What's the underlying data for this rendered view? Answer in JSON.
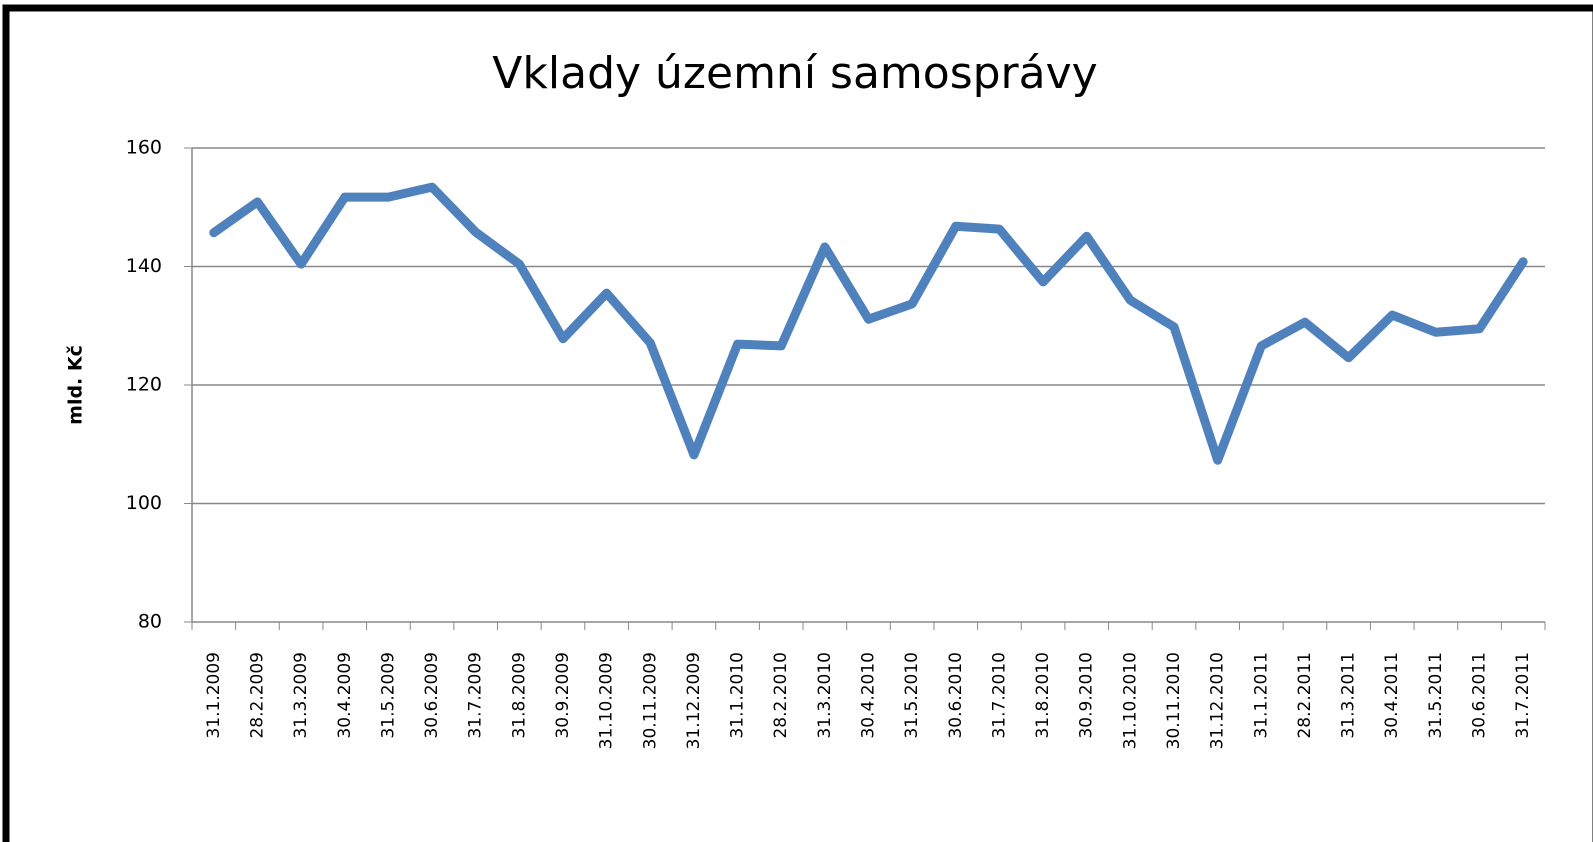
{
  "chart_data": {
    "type": "line",
    "title": "Vklady územní samosprávy",
    "y_label": "mld. Kč",
    "categories": [
      "31.1.2009",
      "28.2.2009",
      "31.3.2009",
      "30.4.2009",
      "31.5.2009",
      "30.6.2009",
      "31.7.2009",
      "31.8.2009",
      "30.9.2009",
      "31.10.2009",
      "30.11.2009",
      "31.12.2009",
      "31.1.2010",
      "28.2.2010",
      "31.3.2010",
      "30.4.2010",
      "31.5.2010",
      "30.6.2010",
      "31.7.2010",
      "31.8.2010",
      "30.9.2010",
      "31.10.2010",
      "30.11.2010",
      "31.12.2010",
      "31.1.2011",
      "28.2.2011",
      "31.3.2011",
      "30.4.2011",
      "31.5.2011",
      "30.6.2011",
      "31.7.2011"
    ],
    "series": [
      {
        "color": "#4f81bd",
        "values": [
          145.7,
          150.9,
          140.4,
          151.7,
          151.7,
          153.4,
          145.8,
          140.4,
          127.8,
          135.5,
          127.1,
          108.2,
          126.9,
          126.6,
          143.3,
          131.1,
          133.7,
          146.8,
          146.3,
          137.4,
          145.1,
          134.3,
          129.8,
          107.3,
          126.6,
          130.6,
          124.6,
          131.8,
          128.9,
          129.5,
          140.8
        ]
      }
    ],
    "ylim": [
      80,
      160
    ],
    "yticks": [
      80,
      100,
      120,
      140,
      160
    ],
    "grid": true
  }
}
